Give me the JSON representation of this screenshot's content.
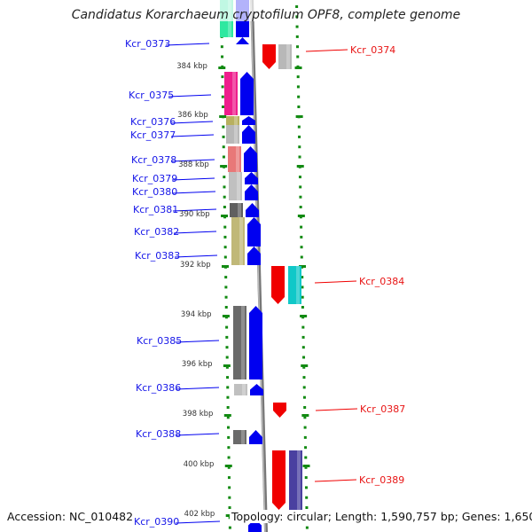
{
  "title": "Candidatus Korarchaeum cryptofilum OPF8, complete genome",
  "footer": {
    "accession": "Accession: NC_010482",
    "summary": "Topology: circular; Length: 1,590,757 bp; Genes: 1,650"
  },
  "scale_labels": [
    "384 kbp",
    "386 kbp",
    "388 kbp",
    "390 kbp",
    "392 kbp",
    "394 kbp",
    "396 kbp",
    "398 kbp",
    "400 kbp",
    "402 kbp"
  ],
  "genes": [
    {
      "name": "Kcr_0373",
      "strand": "forward",
      "cog_color": "#2ee8a0"
    },
    {
      "name": "Kcr_0374",
      "strand": "reverse",
      "cog_color": "#b8b8b8"
    },
    {
      "name": "Kcr_0375",
      "strand": "forward",
      "cog_color": "#ee1e8c"
    },
    {
      "name": "Kcr_0376",
      "strand": "forward",
      "cog_color": "#b8b060"
    },
    {
      "name": "Kcr_0377",
      "strand": "forward",
      "cog_color": "#b8b8b8"
    },
    {
      "name": "Kcr_0378",
      "strand": "forward",
      "cog_color": "#e87878"
    },
    {
      "name": "Kcr_0379",
      "strand": "forward",
      "cog_color": "#c0c0c0"
    },
    {
      "name": "Kcr_0380",
      "strand": "forward",
      "cog_color": "#c0c0c0"
    },
    {
      "name": "Kcr_0381",
      "strand": "forward",
      "cog_color": "#606060"
    },
    {
      "name": "Kcr_0382",
      "strand": "forward",
      "cog_color": "#c0b878"
    },
    {
      "name": "Kcr_0383",
      "strand": "forward",
      "cog_color": "#c0b878"
    },
    {
      "name": "Kcr_0384",
      "strand": "reverse",
      "cog_color": "#10c8c8"
    },
    {
      "name": "Kcr_0385",
      "strand": "forward",
      "cog_color": "#6a6a6a"
    },
    {
      "name": "Kcr_0386",
      "strand": "forward",
      "cog_color": "#c0c0c0"
    },
    {
      "name": "Kcr_0387",
      "strand": "reverse",
      "cog_color": ""
    },
    {
      "name": "Kcr_0388",
      "strand": "forward",
      "cog_color": "#6a6a6a"
    },
    {
      "name": "Kcr_0389",
      "strand": "reverse",
      "cog_color": "#4a40a0"
    },
    {
      "name": "Kcr_0390",
      "strand": "forward",
      "cog_color": ""
    }
  ],
  "colors": {
    "forward": "#0000f0",
    "reverse": "#f00000",
    "label_forward": "#1515e8",
    "label_reverse": "#e81515",
    "ticks": "#128a12",
    "backbone": "#888888"
  }
}
